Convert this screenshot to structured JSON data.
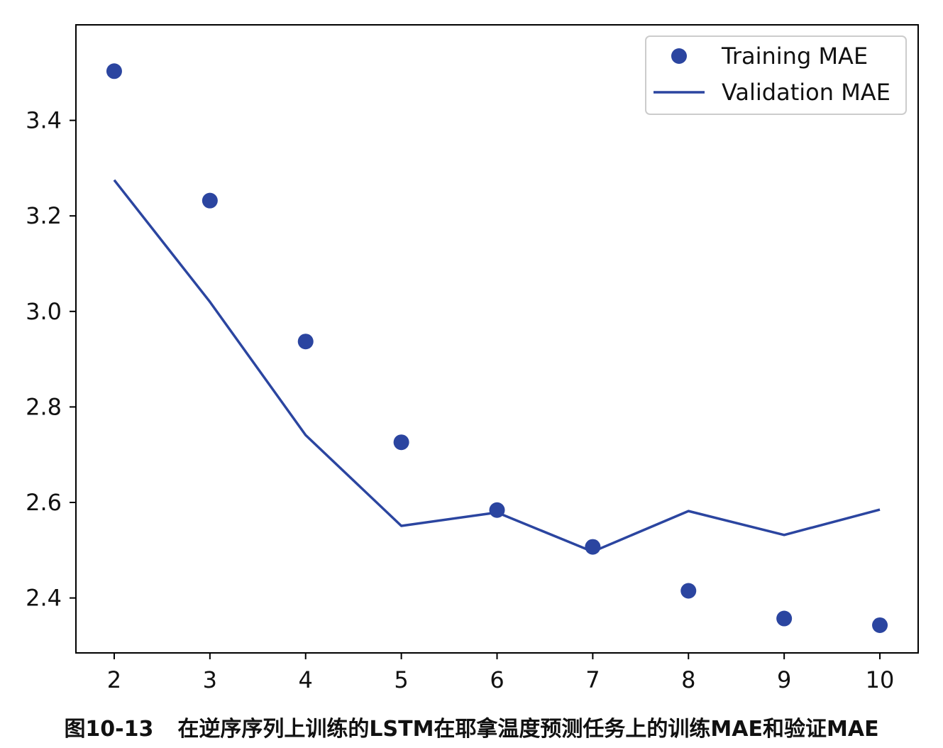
{
  "chart_data": {
    "type": "line",
    "x": [
      2,
      3,
      4,
      5,
      6,
      7,
      8,
      9,
      10
    ],
    "xticks": [
      "2",
      "3",
      "4",
      "5",
      "6",
      "7",
      "8",
      "9",
      "10"
    ],
    "yticks": [
      "2.4",
      "2.6",
      "2.8",
      "3.0",
      "3.2",
      "3.4"
    ],
    "ytick_values": [
      2.4,
      2.6,
      2.8,
      3.0,
      3.2,
      3.4
    ],
    "xlim": [
      1.6,
      10.4
    ],
    "ylim": [
      2.285,
      3.6
    ],
    "grid": false,
    "legend_position": "top-right",
    "series": [
      {
        "name": "Training MAE",
        "style": "scatter",
        "color": "#2b45a0",
        "values": [
          3.503,
          3.232,
          2.937,
          2.726,
          2.584,
          2.507,
          2.415,
          2.357,
          2.343
        ]
      },
      {
        "name": "Validation MAE",
        "style": "line",
        "color": "#2b45a0",
        "values": [
          3.275,
          3.02,
          2.741,
          2.551,
          2.579,
          2.497,
          2.582,
          2.532,
          2.585
        ]
      }
    ]
  },
  "caption": {
    "number": "图10-13",
    "text": "在逆序序列上训练的LSTM在耶拿温度预测任务上的训练MAE和验证MAE"
  }
}
